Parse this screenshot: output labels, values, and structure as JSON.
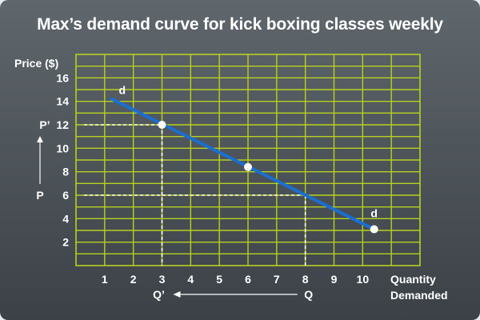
{
  "chart_data": {
    "type": "line",
    "title": "Max’s demand curve for kick boxing classes weekly",
    "ylabel": "Price ($)",
    "xlabel_line1": "Quantity",
    "xlabel_line2": "Demanded",
    "x_ticks": [
      "1",
      "2",
      "3",
      "4",
      "5",
      "6",
      "7",
      "8",
      "9",
      "10"
    ],
    "y_ticks": [
      "2",
      "4",
      "6",
      "8",
      "10",
      "12",
      "14",
      "16"
    ],
    "xlim": [
      0,
      12
    ],
    "ylim": [
      0,
      18
    ],
    "grid": true,
    "series": [
      {
        "label_start": "d",
        "label_end": "d",
        "x": [
          1.25,
          10.4
        ],
        "y": [
          14.2,
          3.1
        ]
      }
    ],
    "points": [
      {
        "x": 3,
        "y": 12
      },
      {
        "x": 6,
        "y": 8.4
      },
      {
        "x": 10.4,
        "y": 3.1
      }
    ],
    "guides": [
      {
        "x": 3,
        "y": 12
      },
      {
        "x": 8,
        "y": 6
      }
    ],
    "annotations": {
      "p_prime": "P’",
      "p": "P",
      "q_prime": "Q’",
      "q": "Q"
    },
    "colors": {
      "grid": "#b8d020",
      "line": "#1a6fd1",
      "guide": "#ffffff",
      "point": "#ffffff"
    }
  }
}
